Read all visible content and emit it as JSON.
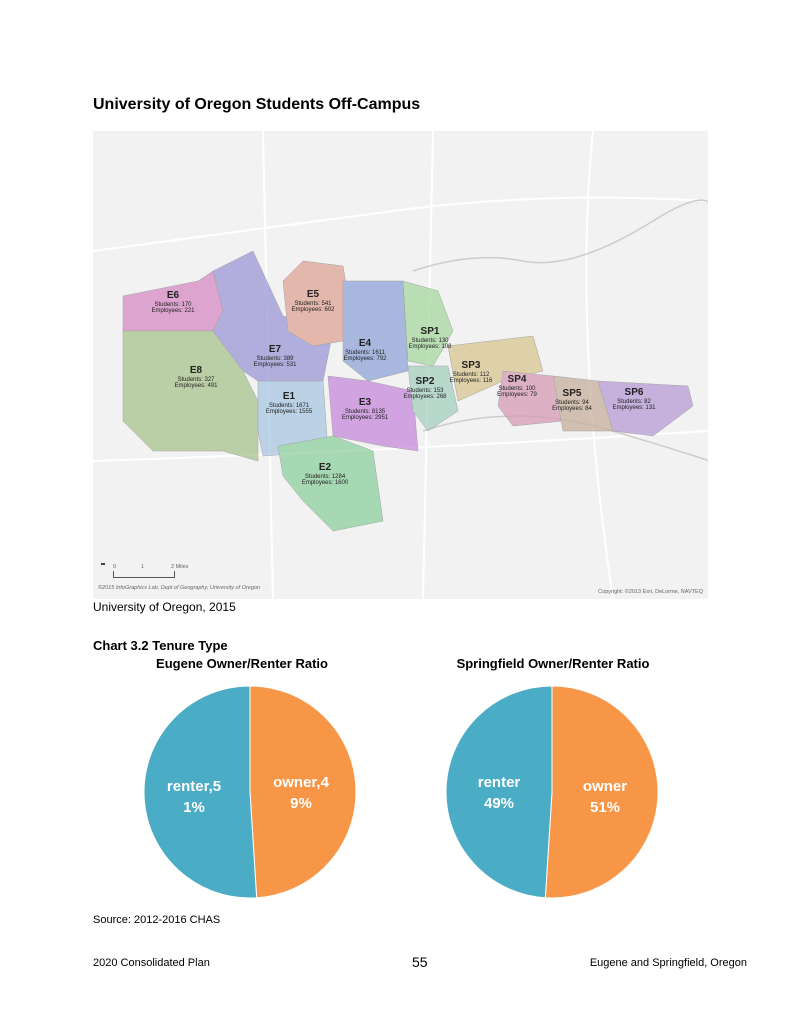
{
  "heading": "University of Oregon Students Off-Campus",
  "map": {
    "districts": [
      {
        "id": "E6",
        "students": "Students: 170",
        "employees": "Employees: 221"
      },
      {
        "id": "E5",
        "students": "Students: 541",
        "employees": "Employees: 602"
      },
      {
        "id": "E4",
        "students": "Students: 1611",
        "employees": "Employees: 792"
      },
      {
        "id": "E7",
        "students": "Students: 389",
        "employees": "Employees: 531"
      },
      {
        "id": "E8",
        "students": "Students: 327",
        "employees": "Employees: 491"
      },
      {
        "id": "E1",
        "students": "Students: 1671",
        "employees": "Employees: 1555"
      },
      {
        "id": "E3",
        "students": "Students: 8135",
        "employees": "Employees: 2951"
      },
      {
        "id": "E2",
        "students": "Students: 1284",
        "employees": "Employees: 1600"
      },
      {
        "id": "SP1",
        "students": "Students: 130",
        "employees": "Employees: 108"
      },
      {
        "id": "SP2",
        "students": "Students: 153",
        "employees": "Employees: 268"
      },
      {
        "id": "SP3",
        "students": "Students: 112",
        "employees": "Employees: 116"
      },
      {
        "id": "SP4",
        "students": "Students: 100",
        "employees": "Employees: 79"
      },
      {
        "id": "SP5",
        "students": "Students: 94",
        "employees": "Employees: 84"
      },
      {
        "id": "SP6",
        "students": "Students: 82",
        "employees": "Employees: 131"
      }
    ],
    "scale": {
      "ticks": [
        "0",
        "1",
        "2 Miles"
      ]
    },
    "credit_left": "©2015 InfoGraphics Lab, Dept of Geography, University of Oregon",
    "credit_right": "Copyright: ©2013 Esri, DeLorme, NAVTEQ"
  },
  "map_caption": "University of Oregon, 2015",
  "chart_section_title": "Chart 3.2 Tenure Type",
  "colors": {
    "renter": "#4BACC6",
    "owner": "#F79646"
  },
  "chart_data": [
    {
      "type": "pie",
      "title": "Eugene Owner/Renter Ratio",
      "slices": [
        {
          "label": "owner",
          "value": 49,
          "text_lines": [
            "owner,4",
            "9%"
          ]
        },
        {
          "label": "renter",
          "value": 51,
          "text_lines": [
            "renter,5",
            "1%"
          ]
        }
      ]
    },
    {
      "type": "pie",
      "title": "Springfield Owner/Renter Ratio",
      "slices": [
        {
          "label": "owner",
          "value": 51,
          "text_lines": [
            "owner",
            "51%"
          ]
        },
        {
          "label": "renter",
          "value": 49,
          "text_lines": [
            "renter",
            "49%"
          ]
        }
      ]
    }
  ],
  "source": "Source: 2012-2016 CHAS",
  "footer": {
    "left": "2020 Consolidated Plan",
    "page": "55",
    "right": "Eugene and Springfield, Oregon"
  }
}
